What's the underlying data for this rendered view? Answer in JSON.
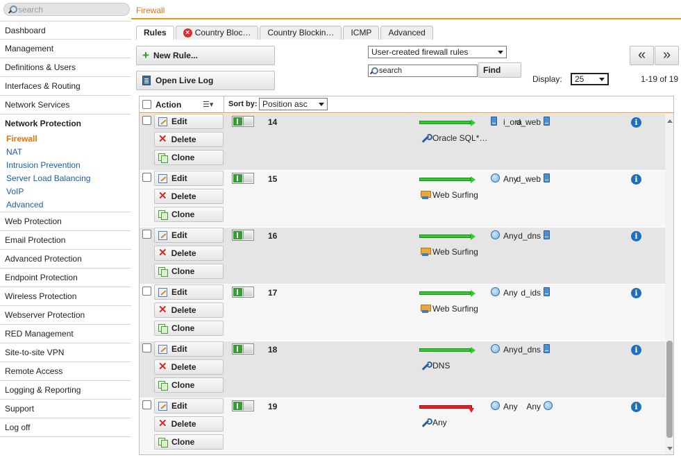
{
  "sidebar": {
    "search_placeholder": "search",
    "items_top": [
      "Dashboard",
      "Management",
      "Definitions & Users",
      "Interfaces & Routing",
      "Network Services"
    ],
    "group": {
      "title": "Network Protection",
      "subitems": [
        "Firewall",
        "NAT",
        "Intrusion Prevention",
        "Server Load Balancing",
        "VoIP",
        "Advanced"
      ]
    },
    "items_bottom": [
      "Web Protection",
      "Email Protection",
      "Advanced Protection",
      "Endpoint Protection",
      "Wireless Protection",
      "Webserver Protection",
      "RED Management",
      "Site-to-site VPN",
      "Remote Access",
      "Logging & Reporting",
      "Support",
      "Log off"
    ]
  },
  "header": {
    "title": "Firewall"
  },
  "tabs": [
    "Rules",
    "Country Bloc…",
    "Country Blockin…",
    "ICMP",
    "Advanced"
  ],
  "toolbar": {
    "new_rule": "New Rule...",
    "open_live_log": "Open Live Log",
    "filter_select": "User-created firewall rules",
    "search_placeholder": "search",
    "find": "Find",
    "display_label": "Display:",
    "display_value": "25",
    "range": "1-19 of 19",
    "prev": "«",
    "next": "»"
  },
  "table": {
    "action_header": "Action",
    "sort_label": "Sort by:",
    "sort_value": "Position asc",
    "edit": "Edit",
    "delete": "Delete",
    "clone": "Clone",
    "info": "i",
    "rows": [
      {
        "pos": "14",
        "source": "d_web",
        "service": "Oracle SQL*…",
        "service_icon": "wrench",
        "destination": "i_ora",
        "dest_icon": "server",
        "src_icon": "server",
        "action": "allow"
      },
      {
        "pos": "15",
        "source": "d_web",
        "service": "Web Surfing",
        "service_icon": "web",
        "destination": "Any",
        "dest_icon": "globe",
        "src_icon": "server",
        "action": "allow"
      },
      {
        "pos": "16",
        "source": "d_dns",
        "service": "Web Surfing",
        "service_icon": "web",
        "destination": "Any",
        "dest_icon": "globe",
        "src_icon": "server",
        "action": "allow"
      },
      {
        "pos": "17",
        "source": "d_ids",
        "service": "Web Surfing",
        "service_icon": "web",
        "destination": "Any",
        "dest_icon": "globe",
        "src_icon": "server",
        "action": "allow"
      },
      {
        "pos": "18",
        "source": "d_dns",
        "service": "DNS",
        "service_icon": "wrench",
        "destination": "Any",
        "dest_icon": "globe",
        "src_icon": "server",
        "action": "allow"
      },
      {
        "pos": "19",
        "source": "Any",
        "service": "Any",
        "service_icon": "wrench",
        "destination": "Any",
        "dest_icon": "globe",
        "src_icon": "globe",
        "action": "drop"
      }
    ]
  },
  "colors": {
    "accent": "#e8730d",
    "link": "#1a5fa8",
    "allow": "#2ecc2e",
    "drop": "#e62020"
  }
}
